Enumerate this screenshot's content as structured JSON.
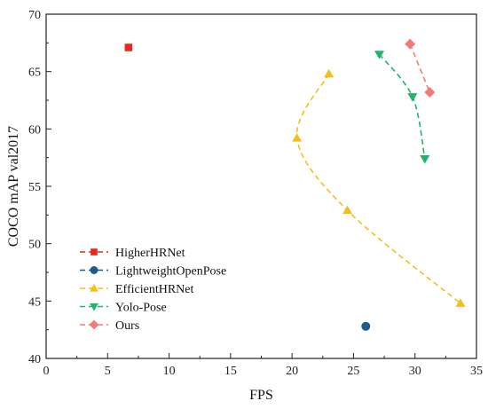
{
  "chart_data": {
    "type": "scatter",
    "xlabel": "FPS",
    "ylabel": "COCO mAP val2017",
    "xlim": [
      0,
      35
    ],
    "ylim": [
      40,
      70
    ],
    "xticks": [
      0,
      5,
      10,
      15,
      20,
      25,
      30,
      35
    ],
    "yticks": [
      40,
      45,
      50,
      55,
      60,
      65,
      70
    ],
    "grid": false,
    "legend_position": "bottom-left",
    "series": [
      {
        "name": "HigherHRNet",
        "color": "#e8281e",
        "marker": "square",
        "x": [
          6.7
        ],
        "y": [
          67.1
        ]
      },
      {
        "name": "LightweightOpenPose",
        "color": "#1f5b8f",
        "marker": "circle",
        "x": [
          26.0
        ],
        "y": [
          42.8
        ]
      },
      {
        "name": "EfficientHRNet",
        "color": "#f5bf1b",
        "marker": "triangle-up",
        "x": [
          23.0,
          20.4,
          24.5,
          33.7
        ],
        "y": [
          64.8,
          59.2,
          52.9,
          44.8
        ]
      },
      {
        "name": "Yolo-Pose",
        "color": "#1fb36b",
        "marker": "triangle-down",
        "x": [
          27.1,
          29.8,
          30.8
        ],
        "y": [
          66.5,
          62.8,
          57.4
        ]
      },
      {
        "name": "Ours",
        "color": "#f47a7a",
        "marker": "diamond",
        "x": [
          29.6,
          31.2
        ],
        "y": [
          67.4,
          63.2
        ]
      }
    ]
  }
}
